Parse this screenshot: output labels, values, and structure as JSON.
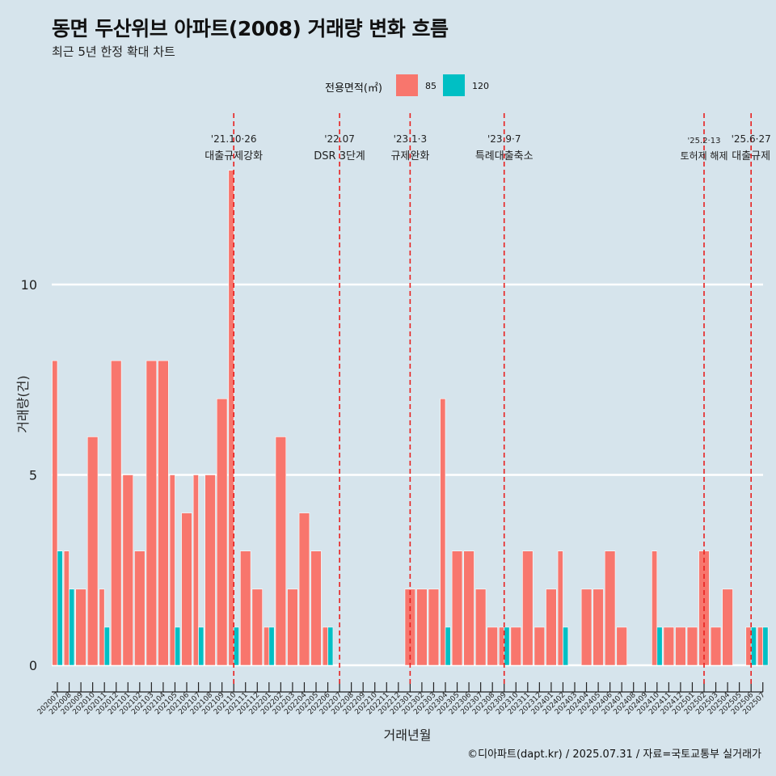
{
  "header": {
    "title": "동면 두산위브 아파트(2008) 거래량 변화 흐름",
    "subtitle": "최근 5년 한정 확대 차트"
  },
  "legend": {
    "title": "전용면적(㎡)",
    "items": [
      {
        "label": "85",
        "color": "#f8766d"
      },
      {
        "label": "120",
        "color": "#00bfc4"
      }
    ]
  },
  "caption": "©디아파트(dapt.kr) / 2025.07.31 / 자료=국토교통부 실거래가",
  "chart_data": {
    "type": "bar",
    "title": "동면 두산위브 아파트(2008) 거래량 변화 흐름",
    "xlabel": "거래년월",
    "ylabel": "거래량(건)",
    "ylim": [
      -0.5,
      13.5
    ],
    "yticks": [
      0,
      5,
      10
    ],
    "grid": true,
    "legend_position": "top",
    "categories": [
      "202007",
      "202008",
      "202009",
      "202010",
      "202011",
      "202012",
      "202101",
      "202102",
      "202103",
      "202104",
      "202105",
      "202106",
      "202107",
      "202108",
      "202109",
      "202110",
      "202111",
      "202112",
      "202201",
      "202202",
      "202203",
      "202204",
      "202205",
      "202206",
      "202207",
      "202208",
      "202209",
      "202210",
      "202211",
      "202212",
      "202301",
      "202302",
      "202303",
      "202304",
      "202305",
      "202306",
      "202307",
      "202308",
      "202309",
      "202310",
      "202311",
      "202312",
      "202401",
      "202402",
      "202403",
      "202404",
      "202405",
      "202406",
      "202407",
      "202408",
      "202409",
      "202410",
      "202411",
      "202412",
      "202501",
      "202502",
      "202503",
      "202504",
      "202505",
      "202506",
      "202507"
    ],
    "series": [
      {
        "name": "85",
        "color": "#f8766d",
        "values": [
          8,
          3,
          2,
          6,
          2,
          8,
          5,
          3,
          8,
          8,
          5,
          4,
          5,
          5,
          7,
          13,
          3,
          2,
          1,
          6,
          2,
          4,
          3,
          1,
          0,
          0,
          0,
          0,
          0,
          0,
          2,
          2,
          2,
          7,
          3,
          3,
          2,
          1,
          1,
          1,
          3,
          1,
          2,
          3,
          0,
          2,
          2,
          3,
          1,
          0,
          0,
          3,
          1,
          1,
          1,
          3,
          1,
          2,
          0,
          1,
          1
        ]
      },
      {
        "name": "120",
        "color": "#00bfc4",
        "values": [
          3,
          2,
          0,
          0,
          1,
          0,
          0,
          0,
          0,
          0,
          1,
          0,
          1,
          0,
          0,
          1,
          0,
          0,
          1,
          0,
          0,
          0,
          0,
          1,
          0,
          0,
          0,
          0,
          0,
          0,
          0,
          0,
          0,
          1,
          0,
          0,
          0,
          0,
          1,
          0,
          0,
          0,
          0,
          1,
          0,
          0,
          0,
          0,
          0,
          0,
          0,
          1,
          0,
          0,
          0,
          0,
          0,
          0,
          0,
          1,
          1
        ]
      }
    ],
    "events": [
      {
        "date": "'21.10·26",
        "label": "대출규제강화",
        "month": "202110"
      },
      {
        "date": "'22.07",
        "label": "DSR 3단계",
        "month": "202207"
      },
      {
        "date": "'23.1·3",
        "label": "규제완화",
        "month": "202301"
      },
      {
        "date": "'23.9·7",
        "label": "특례대출축소",
        "month": "202309"
      },
      {
        "date": "'25.2·13",
        "label": "토허제 해제",
        "month": "202502"
      },
      {
        "date": "'25.6·27",
        "label": "대출규제",
        "month": "202506"
      }
    ]
  }
}
